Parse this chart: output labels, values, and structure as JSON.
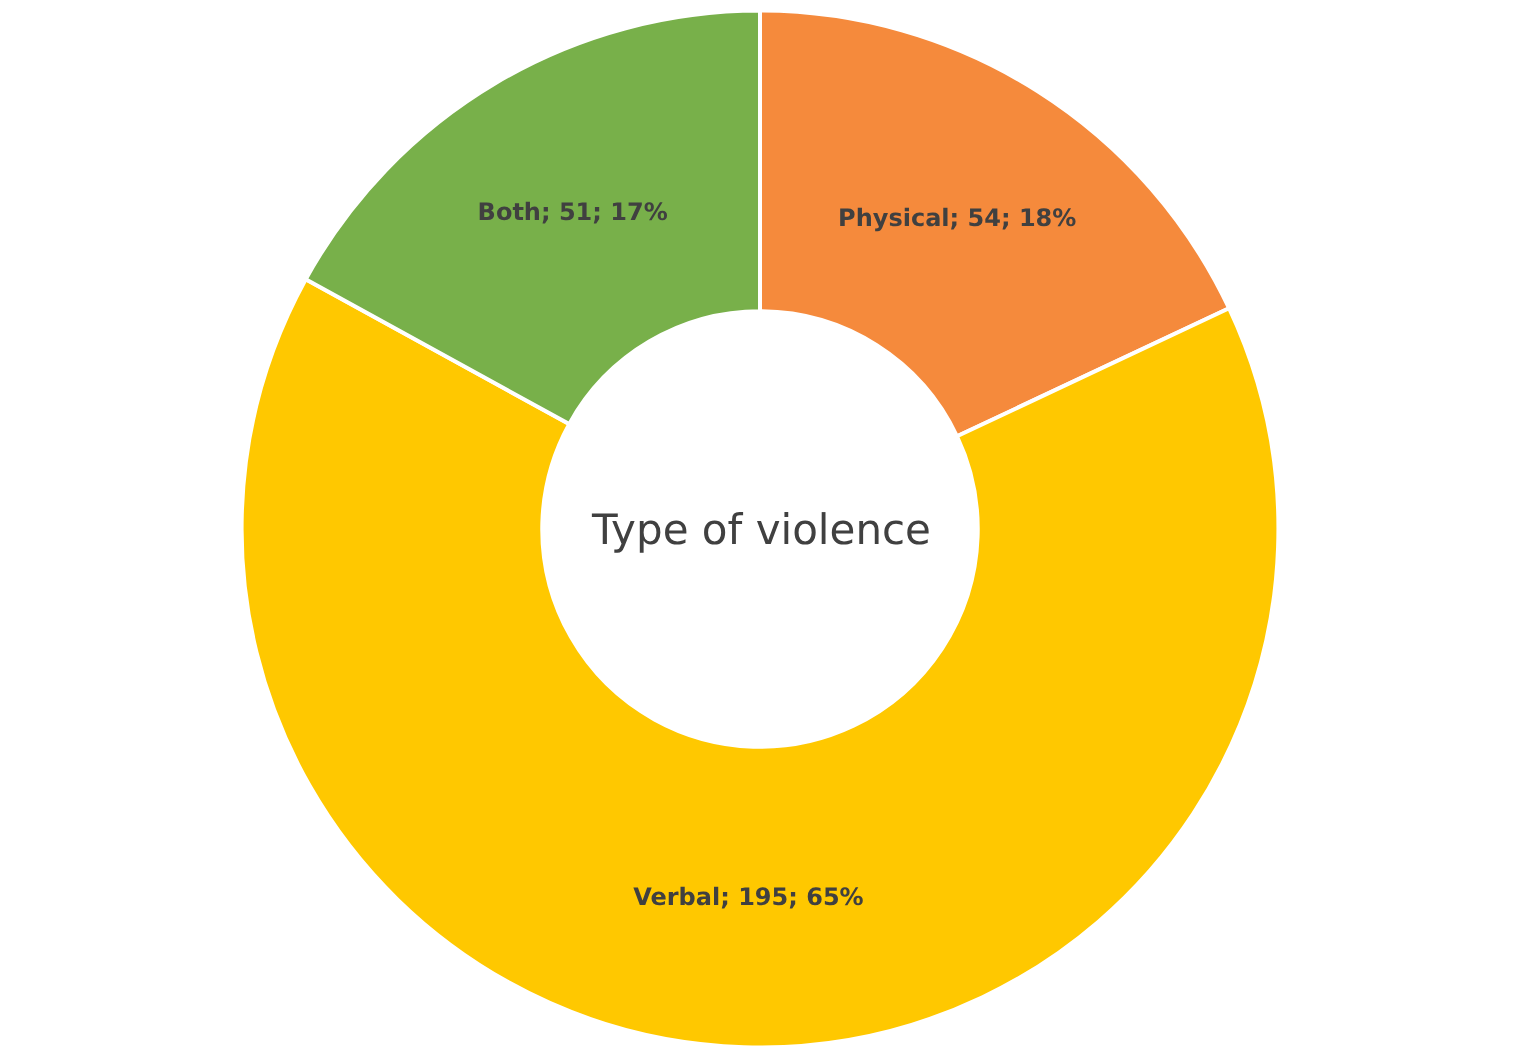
{
  "chart_data": {
    "type": "donut",
    "title": "Type of violence",
    "categories": [
      "Physical; 54; 18%",
      "Verbal; 195; 65%",
      "Both; 51; 17%"
    ],
    "values": [
      54,
      195,
      51
    ],
    "colors": [
      "#f58a3c",
      "#ffc800",
      "#78b04a"
    ],
    "legend": false
  }
}
